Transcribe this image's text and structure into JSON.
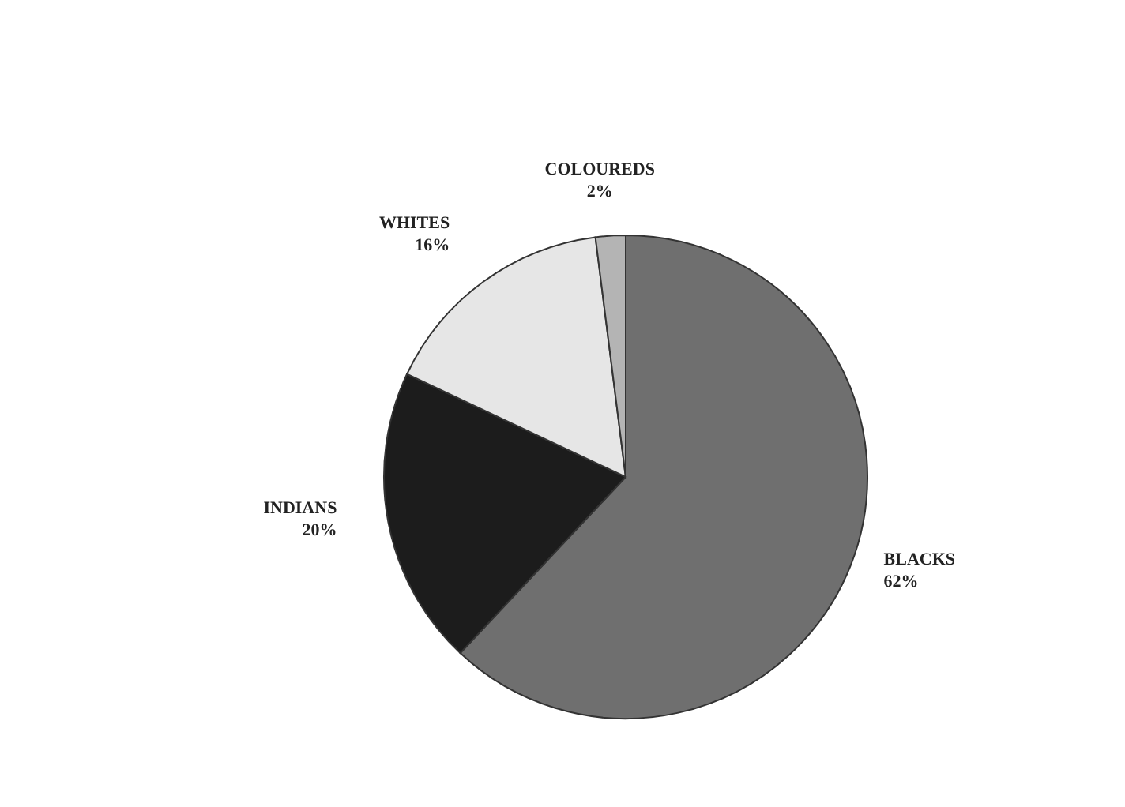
{
  "chart_data": {
    "type": "pie",
    "categories": [
      "BLACKS",
      "INDIANS",
      "WHITES",
      "COLOUREDS"
    ],
    "values": [
      62,
      20,
      16,
      2
    ],
    "value_labels": [
      "62%",
      "20%",
      "16%",
      "2%"
    ],
    "colors": [
      "#6f6f6f",
      "#1c1c1c",
      "#e6e6e6",
      "#b4b4b4"
    ],
    "legend": false
  }
}
